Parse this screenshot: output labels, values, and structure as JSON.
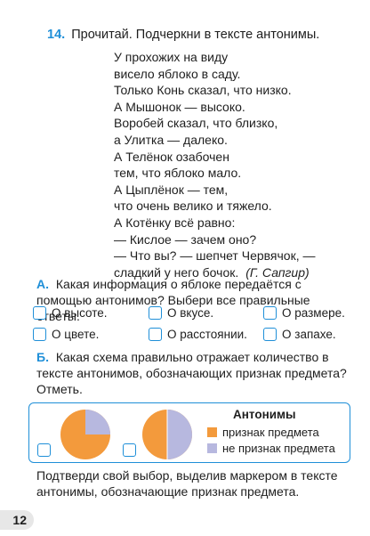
{
  "task": {
    "number": "14.",
    "instruction": "Прочитай. Подчеркни в тексте антонимы."
  },
  "poem": {
    "lines": [
      "У прохожих на виду",
      "висело яблоко в саду.",
      "Только Конь сказал, что низко.",
      "А Мышонок — высоко.",
      "Воробей сказал, что близко,",
      "а Улитка — далеко.",
      "А Телёнок озабочен",
      "тем, что яблоко мало.",
      "А Цыплёнок — тем,",
      "что очень велико и тяжело.",
      "А Котёнку всё равно:",
      "— Кислое — зачем оно?",
      "— Что вы? — шепчет Червячок, —",
      "сладкий у него бочок."
    ],
    "author": "(Г. Сапгир)"
  },
  "question_a": {
    "letter": "А.",
    "text": "Какая информация о яблоке передаётся с помощью антонимов? Выбери все правильные ответы.",
    "options": [
      "О высоте.",
      "О вкусе.",
      "О размере.",
      "О цвете.",
      "О расстоянии.",
      "О запахе."
    ]
  },
  "question_b": {
    "letter": "Б.",
    "text": "Какая схема правильно отражает количество в тексте антонимов, обозначающих признак предмета? Отметь.",
    "legend": {
      "title": "Антонимы",
      "items": [
        "признак предмета",
        "не признак предмета"
      ]
    },
    "colors": {
      "feature": "#f39a3c",
      "not_feature": "#b7b8df"
    },
    "pie_shares": [
      {
        "feature": 0.75,
        "not_feature": 0.25
      },
      {
        "feature": 0.5,
        "not_feature": 0.5
      }
    ]
  },
  "confirm_text": "Подтверди свой выбор, выделив маркером в тексте антонимы, обозначающие признак предмета.",
  "page_number": "12"
}
